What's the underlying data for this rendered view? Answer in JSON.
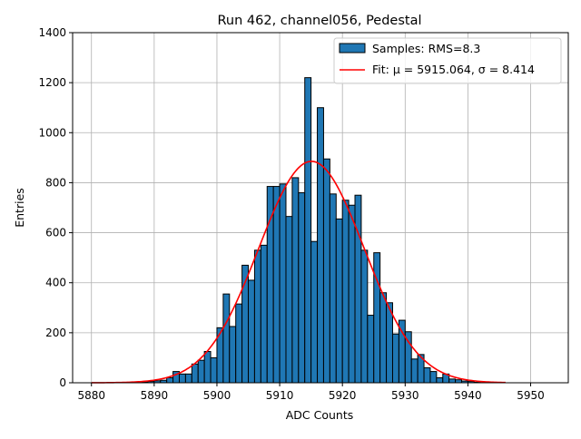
{
  "chart_data": {
    "type": "bar",
    "title": "Run 462, channel056, Pedestal",
    "xlabel": "ADC Counts",
    "ylabel": "Entries",
    "xlim": [
      5877,
      5956
    ],
    "ylim": [
      0,
      1400
    ],
    "xticks": [
      5880,
      5890,
      5900,
      5910,
      5920,
      5930,
      5940,
      5950
    ],
    "yticks": [
      0,
      200,
      400,
      600,
      800,
      1000,
      1200,
      1400
    ],
    "grid": true,
    "legend_position": "top-right",
    "bin_width": 1,
    "bin_starts": [
      5888,
      5889,
      5890,
      5891,
      5892,
      5893,
      5894,
      5895,
      5896,
      5897,
      5898,
      5899,
      5900,
      5901,
      5902,
      5903,
      5904,
      5905,
      5906,
      5907,
      5908,
      5909,
      5910,
      5911,
      5912,
      5913,
      5914,
      5915,
      5916,
      5917,
      5918,
      5919,
      5920,
      5921,
      5922,
      5923,
      5924,
      5925,
      5926,
      5927,
      5928,
      5929,
      5930,
      5931,
      5932,
      5933,
      5934,
      5935,
      5936,
      5937,
      5938,
      5939,
      5940,
      5941
    ],
    "values": [
      3,
      5,
      8,
      10,
      20,
      45,
      35,
      35,
      75,
      90,
      125,
      100,
      220,
      355,
      225,
      315,
      470,
      410,
      530,
      550,
      785,
      785,
      795,
      665,
      820,
      760,
      1220,
      565,
      1100,
      895,
      755,
      655,
      730,
      710,
      750,
      530,
      270,
      520,
      360,
      320,
      195,
      250,
      204,
      95,
      113,
      60,
      45,
      20,
      35,
      15,
      12,
      7,
      5,
      2
    ],
    "bar_color": "#1f77b4",
    "fit": {
      "mu": 5915.064,
      "sigma": 8.414,
      "x_range": [
        5880,
        5946
      ],
      "color": "#ff0000"
    },
    "legend": [
      {
        "label": "Samples: RMS=8.3",
        "kind": "patch",
        "color": "#1f77b4"
      },
      {
        "label": "Fit: μ = 5915.064, σ = 8.414",
        "kind": "line",
        "color": "#ff0000"
      }
    ]
  }
}
